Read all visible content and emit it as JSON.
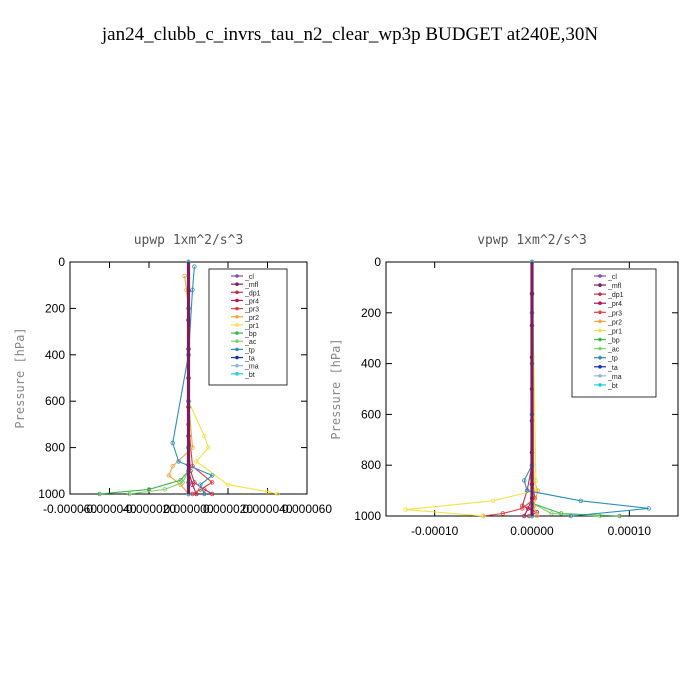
{
  "figure": {
    "title": "jan24_clubb_c_invrs_tau_n2_clear_wp3p  BUDGET at240E,30N"
  },
  "legend_colors": {
    "_cl": "#7b52ab",
    "_mfl": "#7a1f5c",
    "_dp1": "#c0304a",
    "_pr4": "#b5174e",
    "_pr3": "#e0403a",
    "_pr2": "#f4a742",
    "_pr1": "#f5e04a",
    "_bp": "#3fb54f",
    "_ac": "#7fd06a",
    "_tp": "#2e8fb8",
    "_ta": "#1a2fb0",
    "_ma": "#8fb8d8",
    "_bt": "#20d0d8"
  },
  "chart_data": [
    {
      "type": "line",
      "title": "upwp   1xm^2/s^3",
      "ylabel": "Pressure [hPa]",
      "xlabel": "",
      "xlim": [
        -6e-05,
        6e-05
      ],
      "ylim": [
        1000,
        0
      ],
      "xticks": [
        -6e-05,
        -4e-05,
        -2e-05,
        0.0,
        2e-05,
        4e-05,
        6e-05
      ],
      "xtick_labels": [
        "-0.000060",
        "-0.000040",
        "-0.000020",
        "0.000000",
        "0.000020",
        "0.000040",
        "0.000060"
      ],
      "yticks": [
        0,
        200,
        400,
        600,
        800,
        1000
      ],
      "legend": [
        "_cl",
        "_mfl",
        "_dp1",
        "_pr4",
        "_pr3",
        "_pr2",
        "_pr1",
        "_bp",
        "_ac",
        "_tp",
        "_ta",
        "_ma",
        "_bt"
      ],
      "series": [
        {
          "name": "_cl",
          "x": [
            0,
            0,
            0,
            0,
            0,
            0,
            0,
            0,
            0
          ],
          "y": [
            0,
            125,
            250,
            375,
            500,
            625,
            750,
            875,
            1000
          ]
        },
        {
          "name": "_mfl",
          "x": [
            0,
            0,
            0,
            0,
            0,
            0,
            0,
            0,
            0
          ],
          "y": [
            0,
            125,
            250,
            375,
            500,
            625,
            750,
            875,
            1000
          ]
        },
        {
          "name": "_dp1",
          "x": [
            0,
            0,
            0,
            0,
            0,
            1e-06,
            3e-06,
            8e-06,
            1.2e-05
          ],
          "y": [
            0,
            200,
            400,
            600,
            800,
            900,
            950,
            980,
            1000
          ]
        },
        {
          "name": "_pr4",
          "x": [
            0,
            0,
            0,
            0,
            0,
            0,
            2e-06,
            4e-06
          ],
          "y": [
            0,
            200,
            400,
            600,
            800,
            900,
            960,
            1000
          ]
        },
        {
          "name": "_pr3",
          "x": [
            0,
            0,
            0,
            0,
            2e-06,
            1.2e-05,
            6e-06,
            2e-06
          ],
          "y": [
            0,
            200,
            400,
            700,
            880,
            950,
            980,
            1000
          ]
        },
        {
          "name": "_pr2",
          "x": [
            -2e-06,
            -1e-06,
            0,
            0,
            2e-06,
            -8e-06,
            -1e-05,
            -4e-06,
            0
          ],
          "y": [
            60,
            120,
            200,
            600,
            800,
            880,
            920,
            960,
            1000
          ]
        },
        {
          "name": "_pr1",
          "x": [
            0,
            0,
            0,
            8e-06,
            1e-05,
            4e-06,
            2e-05,
            4e-05,
            4.5e-05
          ],
          "y": [
            0,
            200,
            600,
            750,
            800,
            860,
            960,
            990,
            1000
          ]
        },
        {
          "name": "_bp",
          "x": [
            0,
            0,
            0,
            -4e-06,
            -2e-05,
            -4.5e-05
          ],
          "y": [
            0,
            600,
            900,
            940,
            980,
            1000
          ]
        },
        {
          "name": "_ac",
          "x": [
            0,
            0,
            0,
            -3e-06,
            -1.2e-05,
            -3e-05
          ],
          "y": [
            0,
            600,
            900,
            950,
            980,
            1000
          ]
        },
        {
          "name": "_tp",
          "x": [
            3e-06,
            2e-06,
            0,
            -8e-06,
            -5e-06,
            1.2e-05,
            6e-06,
            8e-06
          ],
          "y": [
            20,
            120,
            400,
            780,
            860,
            920,
            960,
            1000
          ]
        },
        {
          "name": "_ta",
          "x": [
            0,
            0,
            0,
            0,
            0,
            0,
            0,
            0
          ],
          "y": [
            0,
            200,
            400,
            600,
            800,
            900,
            950,
            1000
          ]
        },
        {
          "name": "_ma",
          "x": [
            0,
            0,
            0,
            0,
            0,
            0,
            0,
            0
          ],
          "y": [
            0,
            200,
            400,
            600,
            800,
            900,
            950,
            1000
          ]
        },
        {
          "name": "_bt",
          "x": [
            0,
            0,
            0,
            0,
            0,
            0,
            0,
            0
          ],
          "y": [
            0,
            200,
            400,
            600,
            800,
            900,
            950,
            1000
          ]
        }
      ]
    },
    {
      "type": "line",
      "title": "vpwp   1xm^2/s^3",
      "ylabel": "Pressure [hPa]",
      "xlabel": "",
      "xlim": [
        -0.00015,
        0.00015
      ],
      "ylim": [
        1000,
        0
      ],
      "xticks": [
        -0.0001,
        0.0,
        0.0001
      ],
      "xtick_labels": [
        "-0.00010",
        "0.00000",
        "0.00010"
      ],
      "yticks": [
        0,
        200,
        400,
        600,
        800,
        1000
      ],
      "legend": [
        "_cl",
        "_mfl",
        "_dp1",
        "_pr4",
        "_pr3",
        "_pr2",
        "_pr1",
        "_bp",
        "_ac",
        "_tp",
        "_ta",
        "_ma",
        "_bt"
      ],
      "series": [
        {
          "name": "_cl",
          "x": [
            0,
            0,
            0,
            0,
            0,
            0,
            0,
            0,
            0
          ],
          "y": [
            0,
            125,
            250,
            375,
            500,
            625,
            750,
            875,
            1000
          ]
        },
        {
          "name": "_mfl",
          "x": [
            0,
            0,
            0,
            0,
            0,
            0,
            0,
            0,
            0
          ],
          "y": [
            0,
            125,
            250,
            375,
            500,
            625,
            750,
            875,
            1000
          ]
        },
        {
          "name": "_dp1",
          "x": [
            0,
            0,
            -5e-06,
            -1e-05,
            5e-06,
            -3e-06
          ],
          "y": [
            0,
            800,
            900,
            960,
            985,
            1000
          ]
        },
        {
          "name": "_pr4",
          "x": [
            0,
            0,
            0,
            -4e-06,
            -8e-06
          ],
          "y": [
            0,
            850,
            930,
            970,
            1000
          ]
        },
        {
          "name": "_pr3",
          "x": [
            0,
            0,
            3e-06,
            -1e-05,
            -3e-05,
            -5e-05
          ],
          "y": [
            0,
            850,
            930,
            970,
            990,
            1000
          ]
        },
        {
          "name": "_pr2",
          "x": [
            0,
            2e-06,
            6e-06,
            2e-06,
            5e-06
          ],
          "y": [
            0,
            860,
            900,
            960,
            1000
          ]
        },
        {
          "name": "_pr1",
          "x": [
            0,
            4e-06,
            3e-06,
            -4e-05,
            -0.00013,
            -5e-05
          ],
          "y": [
            0,
            860,
            900,
            940,
            975,
            1000
          ]
        },
        {
          "name": "_bp",
          "x": [
            0,
            0,
            0,
            3e-05,
            9e-05
          ],
          "y": [
            0,
            850,
            950,
            990,
            1000
          ]
        },
        {
          "name": "_ac",
          "x": [
            0,
            0,
            0,
            2e-05,
            7e-05
          ],
          "y": [
            0,
            850,
            950,
            990,
            1000
          ]
        },
        {
          "name": "_tp",
          "x": [
            0,
            0,
            -8e-06,
            -5e-06,
            5e-05,
            0.00012,
            4e-05
          ],
          "y": [
            0,
            800,
            860,
            900,
            940,
            970,
            1000
          ]
        },
        {
          "name": "_ta",
          "x": [
            0,
            0,
            0,
            0,
            0,
            0
          ],
          "y": [
            0,
            200,
            400,
            600,
            800,
            1000
          ]
        },
        {
          "name": "_ma",
          "x": [
            0,
            0,
            0,
            0,
            0,
            0
          ],
          "y": [
            0,
            200,
            400,
            600,
            800,
            1000
          ]
        },
        {
          "name": "_bt",
          "x": [
            0,
            0,
            0,
            0,
            0,
            0
          ],
          "y": [
            0,
            200,
            400,
            600,
            800,
            1000
          ]
        }
      ]
    }
  ]
}
